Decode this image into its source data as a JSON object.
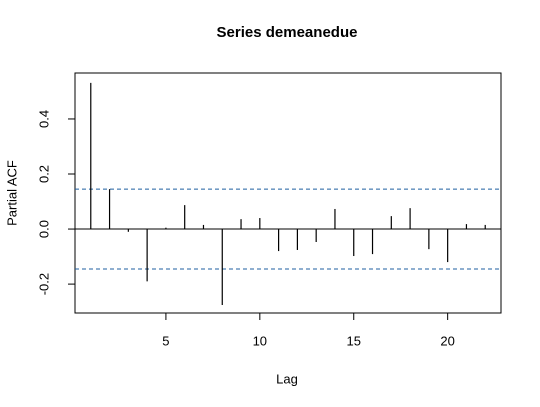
{
  "chart_data": {
    "type": "pacf",
    "title": "Series  demeanedue",
    "xlabel": "Lag",
    "ylabel": "Partial ACF",
    "x": [
      1,
      2,
      3,
      4,
      5,
      6,
      7,
      8,
      9,
      10,
      11,
      12,
      13,
      14,
      15,
      16,
      17,
      18,
      19,
      20,
      21,
      22
    ],
    "values": [
      0.531,
      0.145,
      -0.01,
      -0.19,
      0.005,
      0.087,
      0.015,
      -0.276,
      0.036,
      0.04,
      -0.08,
      -0.076,
      -0.047,
      0.073,
      -0.098,
      -0.091,
      0.047,
      0.076,
      -0.073,
      -0.12,
      0.018,
      0.015
    ],
    "color": "#000000",
    "ci": [
      0.145,
      -0.145
    ],
    "ci_color": "#1f5fa0",
    "xlim": [
      0.16,
      22.84
    ],
    "ylim": [
      -0.305,
      0.567
    ],
    "xticks": [
      5,
      10,
      15,
      20
    ],
    "yticks": [
      -0.2,
      {
        "value": 0,
        "label": "0.0"
      },
      0.2,
      0.4
    ]
  }
}
